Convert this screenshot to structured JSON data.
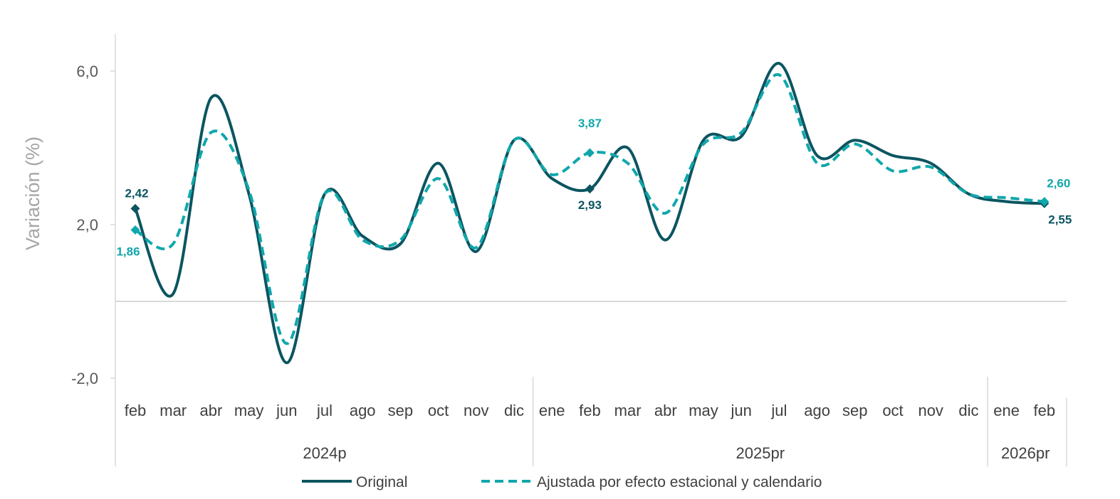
{
  "chart_data": {
    "type": "line",
    "title": "",
    "ylabel": "Variación (%)",
    "xlabel": "",
    "ylim": [
      -2.0,
      7.0
    ],
    "yticks": [
      {
        "value": 6.0,
        "label": "6,0"
      },
      {
        "value": 2.0,
        "label": "2,0"
      },
      {
        "value": -2.0,
        "label": "-2,0"
      }
    ],
    "months": [
      "feb",
      "mar",
      "abr",
      "may",
      "jun",
      "jul",
      "ago",
      "sep",
      "oct",
      "nov",
      "dic",
      "ene",
      "feb",
      "mar",
      "abr",
      "may",
      "jun",
      "jul",
      "ago",
      "sep",
      "oct",
      "nov",
      "dic",
      "ene",
      "feb"
    ],
    "years": [
      {
        "label": "2024p",
        "start": 0,
        "end": 10
      },
      {
        "label": "2025pr",
        "start": 11,
        "end": 22
      },
      {
        "label": "2026pr",
        "start": 23,
        "end": 24
      }
    ],
    "series": [
      {
        "name": "Original",
        "color": "#0b5561",
        "dash": false,
        "values": [
          2.42,
          0.2,
          5.3,
          2.8,
          -1.6,
          2.8,
          1.7,
          1.5,
          3.6,
          1.3,
          4.2,
          3.2,
          2.93,
          4.0,
          1.6,
          4.2,
          4.3,
          6.2,
          3.8,
          4.2,
          3.8,
          3.6,
          2.8,
          2.6,
          2.55
        ],
        "labels": [
          {
            "index": 0,
            "text": "2,42",
            "pos": "above"
          },
          {
            "index": 12,
            "text": "2,93",
            "pos": "below"
          },
          {
            "index": 24,
            "text": "2,55",
            "pos": "below"
          }
        ]
      },
      {
        "name": "Ajustada por efecto estacional y calendario",
        "color": "#10a7ab",
        "dash": true,
        "values": [
          1.86,
          1.5,
          4.4,
          2.9,
          -1.1,
          2.8,
          1.6,
          1.6,
          3.2,
          1.4,
          4.2,
          3.3,
          3.87,
          3.6,
          2.3,
          4.1,
          4.4,
          5.9,
          3.6,
          4.1,
          3.4,
          3.5,
          2.8,
          2.7,
          2.6
        ],
        "labels": [
          {
            "index": 0,
            "text": "1,86",
            "pos": "below-left"
          },
          {
            "index": 12,
            "text": "3,87",
            "pos": "above"
          },
          {
            "index": 24,
            "text": "2,60",
            "pos": "above"
          }
        ]
      }
    ],
    "legend_position": "bottom"
  }
}
